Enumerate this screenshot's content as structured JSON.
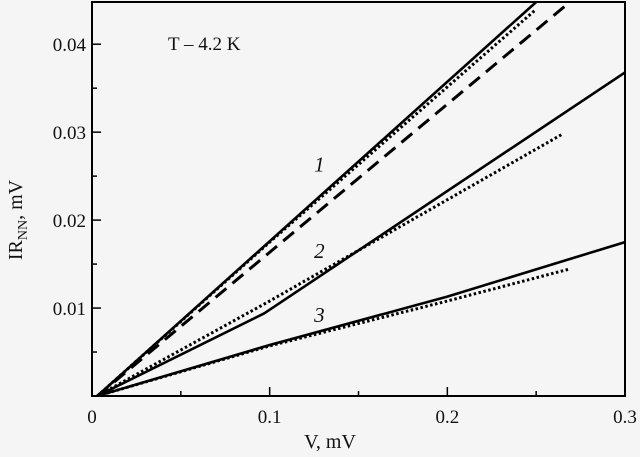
{
  "chart_data": {
    "type": "line",
    "title": "",
    "xlabel": "V, mV",
    "ylabel": "IR_NN, mV",
    "ylabel_main": "IR",
    "ylabel_sub": "NN",
    "ylabel_suffix": ", mV",
    "xlim": [
      0,
      0.3
    ],
    "ylim": [
      0,
      0.0448
    ],
    "x_ticks": [
      0,
      0.1,
      0.2,
      0.3
    ],
    "x_tick_labels": [
      "0",
      "0.1",
      "0.2",
      "0.3"
    ],
    "x_minor_ticks": [
      0.05,
      0.15,
      0.25
    ],
    "y_ticks": [
      0.01,
      0.02,
      0.03,
      0.04
    ],
    "y_tick_labels": [
      "0.01",
      "0.02",
      "0.03",
      "0.04"
    ],
    "y_minor_ticks": [
      0.005,
      0.015,
      0.025,
      0.035
    ],
    "grid": false,
    "legend": null,
    "annotation": "T – 4.2 K",
    "curve_labels": [
      {
        "text": "1",
        "x": 0.128,
        "y": 0.0255
      },
      {
        "text": "2",
        "x": 0.128,
        "y": 0.0157
      },
      {
        "text": "3",
        "x": 0.128,
        "y": 0.0084
      }
    ],
    "series": [
      {
        "name": "1 (solid)",
        "style": "solid",
        "x": [
          0.003,
          0.25
        ],
        "y": [
          0.0,
          0.0448
        ]
      },
      {
        "name": "1 (dotted)",
        "style": "dotted",
        "x": [
          0.003,
          0.1,
          0.249
        ],
        "y": [
          0.0,
          0.0175,
          0.0438
        ]
      },
      {
        "name": "dashed",
        "style": "dashed",
        "x": [
          0.003,
          0.269
        ],
        "y": [
          0.0,
          0.0448
        ]
      },
      {
        "name": "2 (solid)",
        "style": "solid",
        "x": [
          0.003,
          0.097,
          0.3
        ],
        "y": [
          0.0,
          0.0094,
          0.0368
        ]
      },
      {
        "name": "2 (dotted)",
        "style": "dotted",
        "x": [
          0.003,
          0.1,
          0.265
        ],
        "y": [
          0.0,
          0.0108,
          0.0298
        ]
      },
      {
        "name": "3 (solid)",
        "style": "solid",
        "x": [
          0.003,
          0.1,
          0.2,
          0.3
        ],
        "y": [
          0.0,
          0.0058,
          0.0113,
          0.0175
        ]
      },
      {
        "name": "3 (dotted)",
        "style": "dotted",
        "x": [
          0.003,
          0.1,
          0.2,
          0.268
        ],
        "y": [
          0.0,
          0.0057,
          0.0108,
          0.0144
        ]
      }
    ]
  }
}
